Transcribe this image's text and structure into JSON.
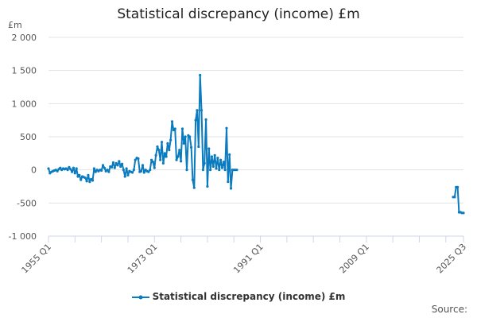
{
  "chart_data": {
    "type": "line",
    "title": "Statistical discrepancy (income) £m",
    "ylabel": "£m",
    "xlabel": "",
    "ylim": [
      -1000,
      2000
    ],
    "yticks": [
      -1000,
      -500,
      0,
      500,
      1000,
      1500,
      2000
    ],
    "ytick_labels": [
      "-1 000",
      "-500",
      "0",
      "500",
      "1 000",
      "1 500",
      "2 000"
    ],
    "xlim": [
      "1955 Q1",
      "2025 Q3"
    ],
    "xtick_labels": [
      "1955 Q1",
      "1973 Q1",
      "1991 Q1",
      "2009 Q1",
      "2025 Q3"
    ],
    "grid": true,
    "legend": "bottom",
    "source_label": "Source:",
    "color": "#0a7bbf",
    "series": [
      {
        "name": "Statistical discrepancy (income) £m",
        "segments": [
          [
            [
              "1955 Q1",
              20
            ],
            [
              "1955 Q2",
              -50
            ],
            [
              "1955 Q3",
              -30
            ],
            [
              "1955 Q4",
              -20
            ],
            [
              "1956 Q1",
              -10
            ],
            [
              "1956 Q2",
              0
            ],
            [
              "1956 Q3",
              -20
            ],
            [
              "1956 Q4",
              10
            ],
            [
              "1957 Q1",
              30
            ],
            [
              "1957 Q2",
              0
            ],
            [
              "1957 Q3",
              20
            ],
            [
              "1957 Q4",
              10
            ],
            [
              "1958 Q1",
              20
            ],
            [
              "1958 Q2",
              0
            ],
            [
              "1958 Q3",
              40
            ],
            [
              "1958 Q4",
              10
            ],
            [
              "1959 Q1",
              -30
            ],
            [
              "1959 Q2",
              30
            ],
            [
              "1959 Q3",
              -50
            ],
            [
              "1959 Q4",
              20
            ],
            [
              "1960 Q1",
              -100
            ],
            [
              "1960 Q2",
              -80
            ],
            [
              "1960 Q3",
              -150
            ],
            [
              "1960 Q4",
              -100
            ],
            [
              "1961 Q1",
              -110
            ],
            [
              "1961 Q2",
              -120
            ],
            [
              "1961 Q3",
              -170
            ],
            [
              "1961 Q4",
              -80
            ],
            [
              "1962 Q1",
              -180
            ],
            [
              "1962 Q2",
              -140
            ],
            [
              "1962 Q3",
              -160
            ],
            [
              "1962 Q4",
              20
            ],
            [
              "1963 Q1",
              -30
            ],
            [
              "1963 Q2",
              0
            ],
            [
              "1963 Q3",
              -20
            ],
            [
              "1963 Q4",
              0
            ],
            [
              "1964 Q1",
              -10
            ],
            [
              "1964 Q2",
              70
            ],
            [
              "1964 Q3",
              30
            ],
            [
              "1964 Q4",
              -20
            ],
            [
              "1965 Q1",
              0
            ],
            [
              "1965 Q2",
              -30
            ],
            [
              "1965 Q3",
              50
            ],
            [
              "1965 Q4",
              40
            ],
            [
              "1966 Q1",
              110
            ],
            [
              "1966 Q2",
              30
            ],
            [
              "1966 Q3",
              100
            ],
            [
              "1966 Q4",
              70
            ],
            [
              "1967 Q1",
              130
            ],
            [
              "1967 Q2",
              50
            ],
            [
              "1967 Q3",
              90
            ],
            [
              "1967 Q4",
              0
            ],
            [
              "1968 Q1",
              -100
            ],
            [
              "1968 Q2",
              20
            ],
            [
              "1968 Q3",
              -80
            ],
            [
              "1968 Q4",
              -20
            ],
            [
              "1969 Q1",
              -30
            ],
            [
              "1969 Q2",
              -40
            ],
            [
              "1969 Q3",
              0
            ],
            [
              "1969 Q4",
              150
            ],
            [
              "1970 Q1",
              180
            ],
            [
              "1970 Q2",
              170
            ],
            [
              "1970 Q3",
              -30
            ],
            [
              "1970 Q4",
              -20
            ],
            [
              "1971 Q1",
              70
            ],
            [
              "1971 Q2",
              -40
            ],
            [
              "1971 Q3",
              0
            ],
            [
              "1971 Q4",
              -20
            ],
            [
              "1972 Q1",
              -30
            ],
            [
              "1972 Q2",
              0
            ],
            [
              "1972 Q3",
              150
            ],
            [
              "1972 Q4",
              120
            ],
            [
              "1973 Q1",
              30
            ],
            [
              "1973 Q2",
              220
            ],
            [
              "1973 Q3",
              350
            ],
            [
              "1973 Q4",
              300
            ],
            [
              "1974 Q1",
              150
            ],
            [
              "1974 Q2",
              420
            ],
            [
              "1974 Q3",
              100
            ],
            [
              "1974 Q4",
              250
            ],
            [
              "1975 Q1",
              200
            ],
            [
              "1975 Q2",
              400
            ],
            [
              "1975 Q3",
              300
            ],
            [
              "1975 Q4",
              450
            ],
            [
              "1976 Q1",
              730
            ],
            [
              "1976 Q2",
              600
            ],
            [
              "1976 Q3",
              620
            ],
            [
              "1976 Q4",
              150
            ],
            [
              "1977 Q1",
              200
            ],
            [
              "1977 Q2",
              300
            ],
            [
              "1977 Q3",
              130
            ],
            [
              "1977 Q4",
              620
            ],
            [
              "1978 Q1",
              400
            ],
            [
              "1978 Q2",
              500
            ],
            [
              "1978 Q3",
              0
            ],
            [
              "1978 Q4",
              520
            ],
            [
              "1979 Q1",
              500
            ],
            [
              "1979 Q2",
              340
            ],
            [
              "1979 Q3",
              -150
            ],
            [
              "1979 Q4",
              -270
            ],
            [
              "1980 Q1",
              750
            ],
            [
              "1980 Q2",
              900
            ],
            [
              "1980 Q3",
              350
            ],
            [
              "1980 Q4",
              1430
            ],
            [
              "1981 Q1",
              900
            ],
            [
              "1981 Q2",
              0
            ],
            [
              "1981 Q3",
              100
            ],
            [
              "1981 Q4",
              760
            ],
            [
              "1982 Q1",
              -250
            ],
            [
              "1982 Q2",
              320
            ],
            [
              "1982 Q3",
              0
            ],
            [
              "1982 Q4",
              200
            ],
            [
              "1983 Q1",
              50
            ],
            [
              "1983 Q2",
              220
            ],
            [
              "1983 Q3",
              20
            ],
            [
              "1983 Q4",
              180
            ],
            [
              "1984 Q1",
              0
            ],
            [
              "1984 Q2",
              150
            ],
            [
              "1984 Q3",
              30
            ],
            [
              "1984 Q4",
              120
            ],
            [
              "1985 Q1",
              0
            ],
            [
              "1985 Q2",
              630
            ],
            [
              "1985 Q3",
              -180
            ],
            [
              "1985 Q4",
              230
            ],
            [
              "1986 Q1",
              -280
            ],
            [
              "1986 Q2",
              0
            ],
            [
              "1986 Q3",
              0
            ],
            [
              "1986 Q4",
              0
            ],
            [
              "1987 Q1",
              0
            ]
          ],
          [
            [
              "2023 Q4",
              -410
            ],
            [
              "2024 Q1",
              -410
            ],
            [
              "2024 Q2",
              -260
            ],
            [
              "2024 Q3",
              -260
            ],
            [
              "2024 Q4",
              -640
            ],
            [
              "2025 Q1",
              -640
            ],
            [
              "2025 Q2",
              -650
            ],
            [
              "2025 Q3",
              -650
            ]
          ]
        ]
      }
    ]
  }
}
